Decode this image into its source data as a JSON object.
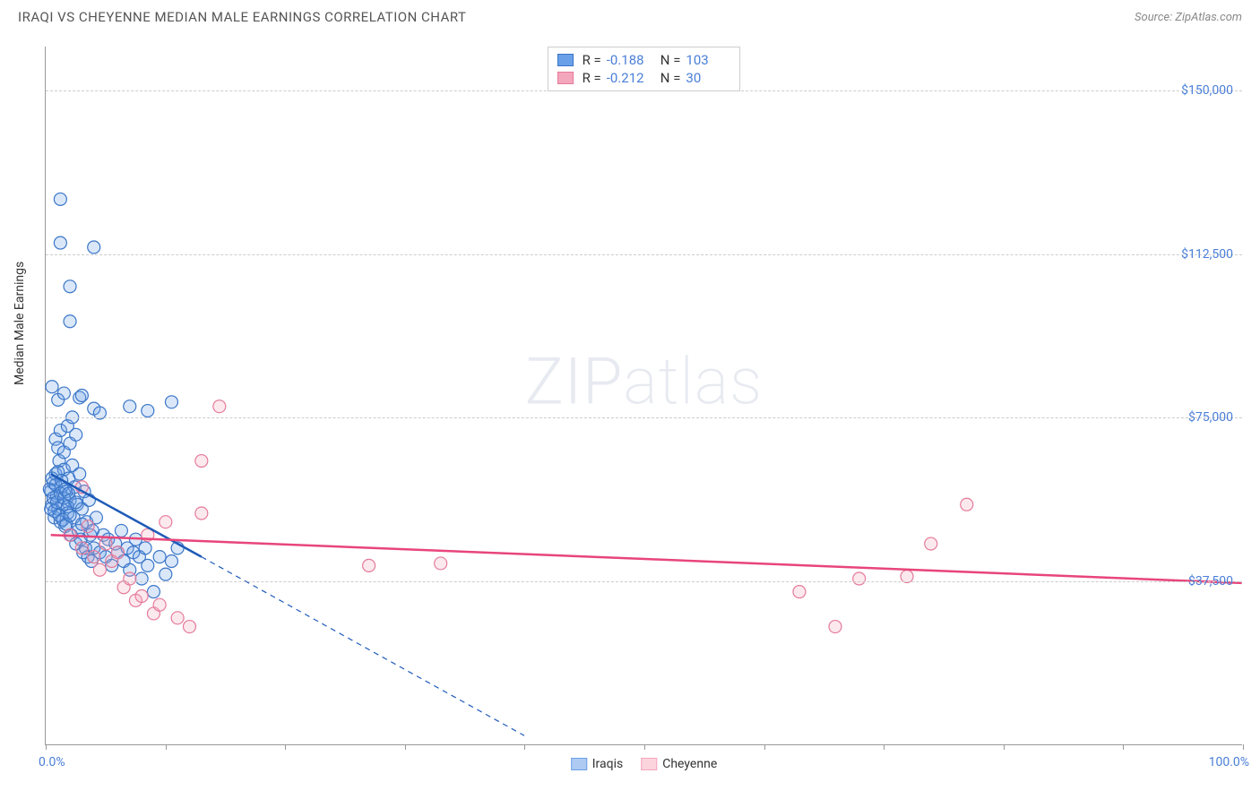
{
  "header": {
    "title": "IRAQI VS CHEYENNE MEDIAN MALE EARNINGS CORRELATION CHART",
    "source": "Source: ZipAtlas.com"
  },
  "chart": {
    "type": "scatter",
    "y_axis_label": "Median Male Earnings",
    "x_min": 0.0,
    "x_max": 100.0,
    "y_min": 0,
    "y_max": 160000,
    "x_min_label": "0.0%",
    "x_max_label": "100.0%",
    "y_ticks": [
      37500,
      75000,
      112500,
      150000
    ],
    "y_tick_labels": [
      "$37,500",
      "$75,000",
      "$112,500",
      "$150,000"
    ],
    "x_tick_positions": [
      0,
      10,
      20,
      30,
      40,
      50,
      60,
      70,
      80,
      90,
      100
    ],
    "grid_color": "#cccccc",
    "axis_color": "#999999",
    "background_color": "#ffffff",
    "watermark": "ZIPatlas",
    "marker_radius": 7,
    "marker_stroke_width": 1.2,
    "marker_fill_opacity": 0.25,
    "line_width": 2.5,
    "series": [
      {
        "name": "Iraqis",
        "color": "#6aa0e8",
        "stroke": "#3a76c8",
        "line_color": "#1e5bb8",
        "R": "-0.188",
        "N": "103",
        "trend": {
          "x1": 0.4,
          "y1": 62000,
          "x2": 13,
          "y2": 43000
        },
        "extrapolate": {
          "x1": 13,
          "y1": 43000,
          "x2": 40,
          "y2": 2000
        },
        "points": [
          [
            0.4,
            58000
          ],
          [
            0.5,
            55000
          ],
          [
            0.6,
            60000
          ],
          [
            0.7,
            52000
          ],
          [
            0.8,
            62000
          ],
          [
            0.9,
            57000
          ],
          [
            1.0,
            54000
          ],
          [
            1.1,
            65000
          ],
          [
            1.2,
            51000
          ],
          [
            1.3,
            59000
          ],
          [
            1.4,
            55000
          ],
          [
            1.5,
            63000
          ],
          [
            1.6,
            50000
          ],
          [
            1.7,
            58000
          ],
          [
            1.8,
            53000
          ],
          [
            1.9,
            61000
          ],
          [
            2.0,
            56000
          ],
          [
            2.1,
            48000
          ],
          [
            2.2,
            64000
          ],
          [
            2.3,
            52000
          ],
          [
            2.4,
            59000
          ],
          [
            2.5,
            46000
          ],
          [
            2.6,
            55000
          ],
          [
            2.7,
            49000
          ],
          [
            2.8,
            62000
          ],
          [
            2.9,
            47000
          ],
          [
            3.0,
            54000
          ],
          [
            3.1,
            44000
          ],
          [
            3.2,
            58000
          ],
          [
            3.3,
            45000
          ],
          [
            3.4,
            51000
          ],
          [
            3.5,
            43000
          ],
          [
            3.6,
            56000
          ],
          [
            3.7,
            48000
          ],
          [
            3.8,
            42000
          ],
          [
            3.9,
            49000
          ],
          [
            4.0,
            45000
          ],
          [
            4.2,
            52000
          ],
          [
            4.5,
            44000
          ],
          [
            4.8,
            48000
          ],
          [
            5.0,
            43000
          ],
          [
            5.2,
            47000
          ],
          [
            5.5,
            41000
          ],
          [
            5.8,
            46000
          ],
          [
            6.0,
            44000
          ],
          [
            6.3,
            49000
          ],
          [
            6.5,
            42000
          ],
          [
            6.8,
            45000
          ],
          [
            7.0,
            40000
          ],
          [
            7.3,
            44000
          ],
          [
            7.5,
            47000
          ],
          [
            7.8,
            43000
          ],
          [
            8.0,
            38000
          ],
          [
            8.3,
            45000
          ],
          [
            8.5,
            41000
          ],
          [
            9.0,
            35000
          ],
          [
            9.5,
            43000
          ],
          [
            10.0,
            39000
          ],
          [
            10.5,
            42000
          ],
          [
            11.0,
            45000
          ],
          [
            0.8,
            70000
          ],
          [
            1.0,
            68000
          ],
          [
            1.2,
            72000
          ],
          [
            1.5,
            67000
          ],
          [
            1.8,
            73000
          ],
          [
            2.0,
            69000
          ],
          [
            2.2,
            75000
          ],
          [
            2.5,
            71000
          ],
          [
            4.0,
            77000
          ],
          [
            4.5,
            76000
          ],
          [
            7.0,
            77500
          ],
          [
            8.5,
            76500
          ],
          [
            10.5,
            78500
          ],
          [
            0.5,
            82000
          ],
          [
            1.0,
            79000
          ],
          [
            1.5,
            80500
          ],
          [
            2.8,
            79500
          ],
          [
            3.0,
            80000
          ],
          [
            1.2,
            125000
          ],
          [
            1.2,
            115000
          ],
          [
            4.0,
            114000
          ],
          [
            2.0,
            105000
          ],
          [
            2.0,
            97000
          ],
          [
            0.3,
            58500
          ],
          [
            0.4,
            54000
          ],
          [
            0.5,
            61000
          ],
          [
            0.6,
            56500
          ],
          [
            0.7,
            53500
          ],
          [
            0.8,
            59500
          ],
          [
            0.9,
            55500
          ],
          [
            1.0,
            62500
          ],
          [
            1.1,
            52500
          ],
          [
            1.2,
            57500
          ],
          [
            1.3,
            60500
          ],
          [
            1.4,
            51500
          ],
          [
            1.5,
            56500
          ],
          [
            1.6,
            58500
          ],
          [
            1.7,
            50500
          ],
          [
            1.8,
            54500
          ],
          [
            1.9,
            57500
          ],
          [
            2.0,
            52500
          ],
          [
            2.5,
            55500
          ],
          [
            3.0,
            50500
          ]
        ]
      },
      {
        "name": "Cheyenne",
        "color": "#f4a6bc",
        "stroke": "#e57a9a",
        "line_color": "#e8457b",
        "R": "-0.212",
        "N": "30",
        "trend": {
          "x1": 0.4,
          "y1": 48000,
          "x2": 100,
          "y2": 37000
        },
        "extrapolate": null,
        "points": [
          [
            2.0,
            48000
          ],
          [
            3.0,
            45000
          ],
          [
            3.5,
            50000
          ],
          [
            4.0,
            43000
          ],
          [
            4.5,
            40000
          ],
          [
            5.0,
            46000
          ],
          [
            5.5,
            42000
          ],
          [
            6.0,
            44000
          ],
          [
            6.5,
            36000
          ],
          [
            7.0,
            38000
          ],
          [
            7.5,
            33000
          ],
          [
            8.0,
            34000
          ],
          [
            8.5,
            48000
          ],
          [
            9.0,
            30000
          ],
          [
            9.5,
            32000
          ],
          [
            10.0,
            51000
          ],
          [
            11.0,
            29000
          ],
          [
            12.0,
            27000
          ],
          [
            13.0,
            65000
          ],
          [
            13.0,
            53000
          ],
          [
            14.5,
            77500
          ],
          [
            27.0,
            41000
          ],
          [
            33.0,
            41500
          ],
          [
            63.0,
            35000
          ],
          [
            66.0,
            27000
          ],
          [
            68.0,
            38000
          ],
          [
            72.0,
            38500
          ],
          [
            74.0,
            46000
          ],
          [
            77.0,
            55000
          ],
          [
            3.0,
            59000
          ]
        ]
      }
    ],
    "legend_bottom": [
      {
        "label": "Iraqis",
        "fill": "#aecaf2",
        "stroke": "#6aa0e8"
      },
      {
        "label": "Cheyenne",
        "fill": "#fbd4de",
        "stroke": "#f4a6bc"
      }
    ]
  }
}
